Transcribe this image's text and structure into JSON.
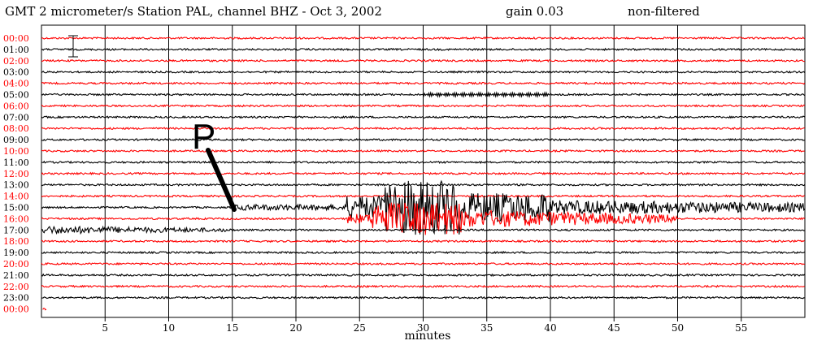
{
  "header": {
    "left": "GMT  2 micrometer/s  Station PAL, channel BHZ  -  Oct  3, 2002",
    "gain": "gain 0.03",
    "filter": "non-filtered"
  },
  "chart_data": {
    "type": "line",
    "title": "GMT 2 micrometer/s Station PAL, channel BHZ - Oct 3, 2002",
    "xlabel": "minutes",
    "ylabel": "",
    "xlim": [
      0,
      60
    ],
    "x_ticks": [
      5,
      10,
      15,
      20,
      25,
      30,
      35,
      40,
      45,
      50,
      55
    ],
    "grid": true,
    "hour_labels": [
      "00:00",
      "01:00",
      "02:00",
      "03:00",
      "04:00",
      "05:00",
      "06:00",
      "07:00",
      "08:00",
      "09:00",
      "10:00",
      "11:00",
      "12:00",
      "13:00",
      "14:00",
      "15:00",
      "16:00",
      "17:00",
      "18:00",
      "19:00",
      "20:00",
      "21:00",
      "22:00",
      "23:00",
      "00:00"
    ],
    "trace_colors": [
      "#ff0000",
      "#000000"
    ],
    "annotation": "P",
    "events": [
      {
        "hour": "05:00",
        "start_min": 30,
        "end_min": 40,
        "description": "small regular oscillation"
      },
      {
        "hour": "15:00",
        "start_min": 15,
        "end_min": 60,
        "description": "P-wave arrival and surface waves"
      },
      {
        "hour": "16:00",
        "start_min": 24,
        "end_min": 50,
        "description": "large amplitude shaking"
      },
      {
        "hour": "17:00",
        "start_min": 0,
        "end_min": 15,
        "description": "coda"
      }
    ]
  }
}
